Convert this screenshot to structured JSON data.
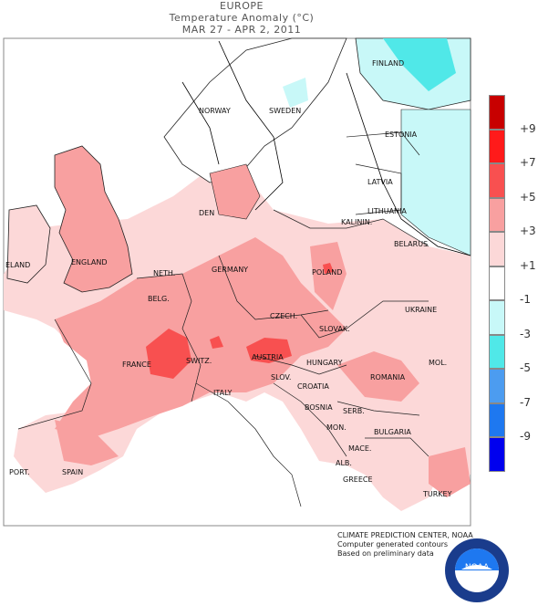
{
  "header": {
    "region": "EUROPE",
    "title": "Temperature Anomaly (°C)",
    "period": "MAR 27 - APR  2, 2011"
  },
  "legend": {
    "items": [
      {
        "color": "#c80000",
        "label": "+9"
      },
      {
        "color": "#ff1a1a",
        "label": "+7"
      },
      {
        "color": "#f85050",
        "label": "+5"
      },
      {
        "color": "#f8a0a0",
        "label": "+3"
      },
      {
        "color": "#fcd8d8",
        "label": "+1"
      },
      {
        "color": "#ffffff",
        "label": "-1"
      },
      {
        "color": "#c8f8f8",
        "label": "-3"
      },
      {
        "color": "#50e8e8",
        "label": "-5"
      },
      {
        "color": "#4c9cf0",
        "label": "-7"
      },
      {
        "color": "#1e78f0",
        "label": "-9"
      },
      {
        "color": "#0000ee",
        "label": ""
      }
    ]
  },
  "countries": {
    "finland": "FINLAND",
    "norway": "NORWAY",
    "sweden": "SWEDEN",
    "estonia": "ESTONIA",
    "latvia": "LATVIA",
    "lithuania": "LITHUANIA",
    "kalinin": "KALININ.",
    "den": "DEN",
    "belarus": "BELARUS",
    "ireland": "ELAND",
    "england": "ENGLAND",
    "neth": "NETH.",
    "germany": "GERMANY",
    "poland": "POLAND",
    "belg": "BELG.",
    "czech": "CZECH.",
    "ukraine": "UKRAINE",
    "slovak": "SLOVAK.",
    "france": "FRANCE",
    "switz": "SWITZ.",
    "austria": "AUSTRIA",
    "hungary": "HUNGARY",
    "mol": "MOL.",
    "romania": "ROMANIA",
    "slov": "SLOV.",
    "croatia": "CROATIA",
    "italy": "ITALY",
    "bosnia": "BOSNIA",
    "serb": "SERB.",
    "mon": "MON.",
    "bulgaria": "BULGARIA",
    "mace": "MACE.",
    "port": "PORT.",
    "spain": "SPAIN",
    "alb": "ALB.",
    "greece": "GREECE",
    "turkey": "TURKEY"
  },
  "credits": {
    "line1": "CLIMATE PREDICTION CENTER, NOAA",
    "line2": "Computer generated contours",
    "line3": "Based on preliminary data"
  },
  "logo": {
    "text": "NOAA",
    "ring_top": "NATIONAL OCEANIC AND ATMOSPHERIC ADMINISTRATION",
    "ring_bottom": "U.S. DEPARTMENT OF COMMERCE"
  }
}
